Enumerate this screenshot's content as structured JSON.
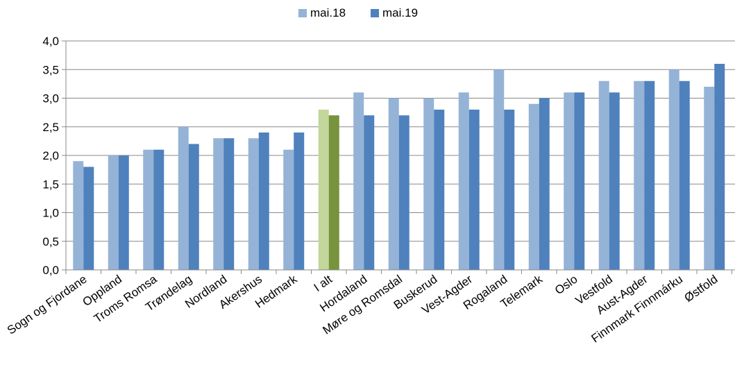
{
  "chart_data": {
    "type": "bar",
    "title": "",
    "xlabel": "",
    "ylabel": "",
    "ylim": [
      0,
      4
    ],
    "y_ticks": [
      "0,0",
      "0,5",
      "1,0",
      "1,5",
      "2,0",
      "2,5",
      "3,0",
      "3,5",
      "4,0"
    ],
    "grid": true,
    "legend_position": "top-center",
    "categories": [
      "Sogn og Fjordane",
      "Oppland",
      "Troms Romsa",
      "Trøndelag",
      "Nordland",
      "Akershus",
      "Hedmark",
      "I alt",
      "Hordaland",
      "Møre og Romsdal",
      "Buskerud",
      "Vest-Agder",
      "Rogaland",
      "Telemark",
      "Oslo",
      "Vestfold",
      "Aust-Agder",
      "Finnmark Finnmárku",
      "Østfold"
    ],
    "highlight_category": "I alt",
    "series": [
      {
        "name": "mai.18",
        "color": "#95b3d7",
        "highlight_color": "#c3d69b",
        "values": [
          1.9,
          2.0,
          2.1,
          2.5,
          2.3,
          2.3,
          2.1,
          2.8,
          3.1,
          3.0,
          3.0,
          3.1,
          3.5,
          2.9,
          3.1,
          3.3,
          3.3,
          3.5,
          3.2
        ]
      },
      {
        "name": "mai.19",
        "color": "#4f81bd",
        "highlight_color": "#77933c",
        "values": [
          1.8,
          2.0,
          2.1,
          2.2,
          2.3,
          2.4,
          2.4,
          2.7,
          2.7,
          2.7,
          2.8,
          2.8,
          2.8,
          3.0,
          3.1,
          3.1,
          3.3,
          3.3,
          3.6
        ]
      }
    ]
  }
}
